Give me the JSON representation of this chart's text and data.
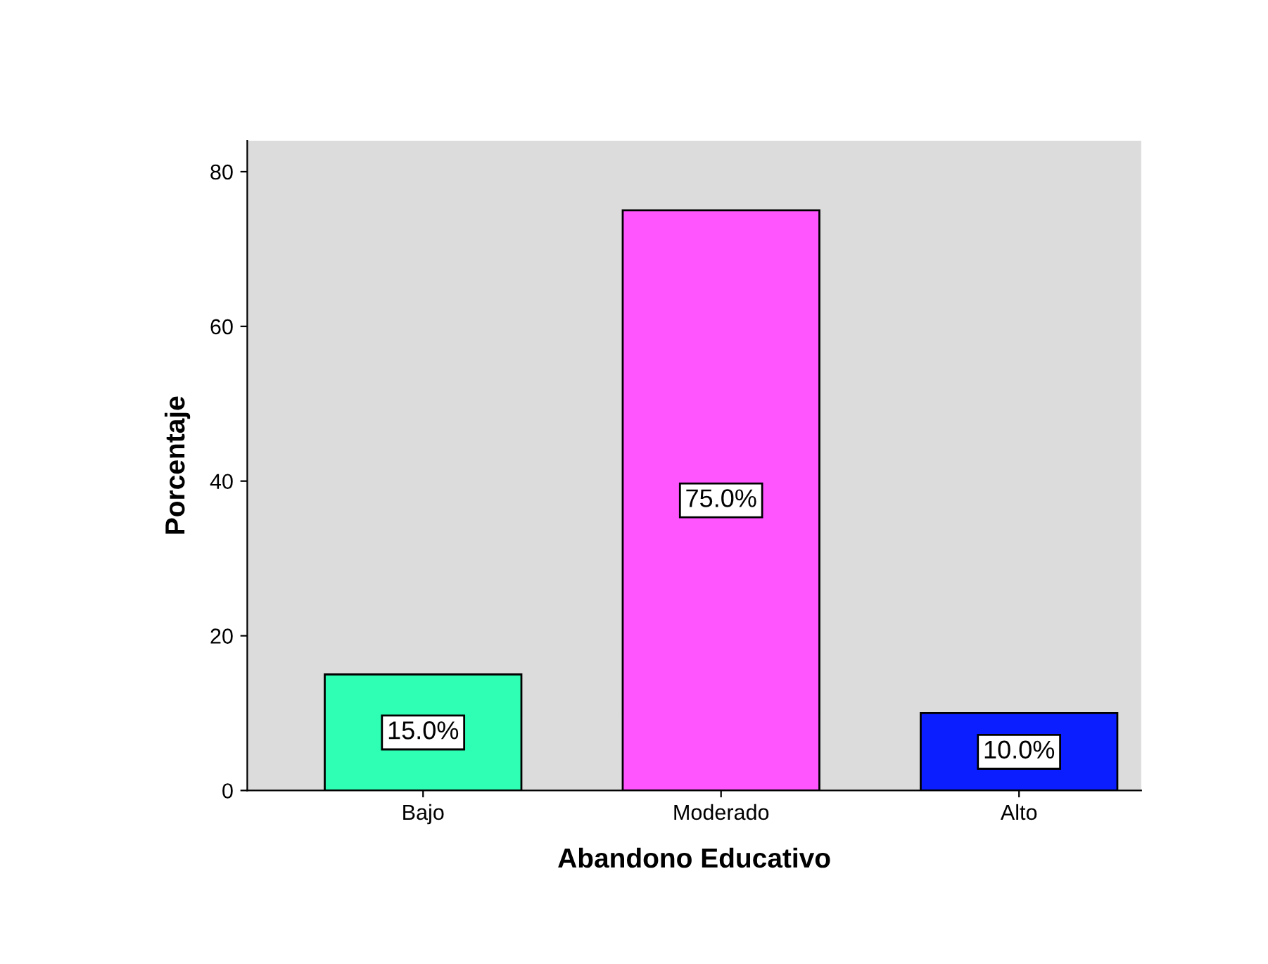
{
  "chart_data": {
    "type": "bar",
    "xlabel": "Abandono Educativo",
    "ylabel": "Porcentaje",
    "categories": [
      "Bajo",
      "Moderado",
      "Alto"
    ],
    "values": [
      15,
      75,
      10
    ],
    "colors": [
      "#2effb4",
      "#ff55ff",
      "#0a1eff"
    ],
    "value_labels": [
      "15.0%",
      "75.0%",
      "10.0%"
    ],
    "ylim": [
      0,
      84
    ],
    "yticks": [
      0,
      20,
      40,
      60,
      80
    ],
    "grid": false
  }
}
